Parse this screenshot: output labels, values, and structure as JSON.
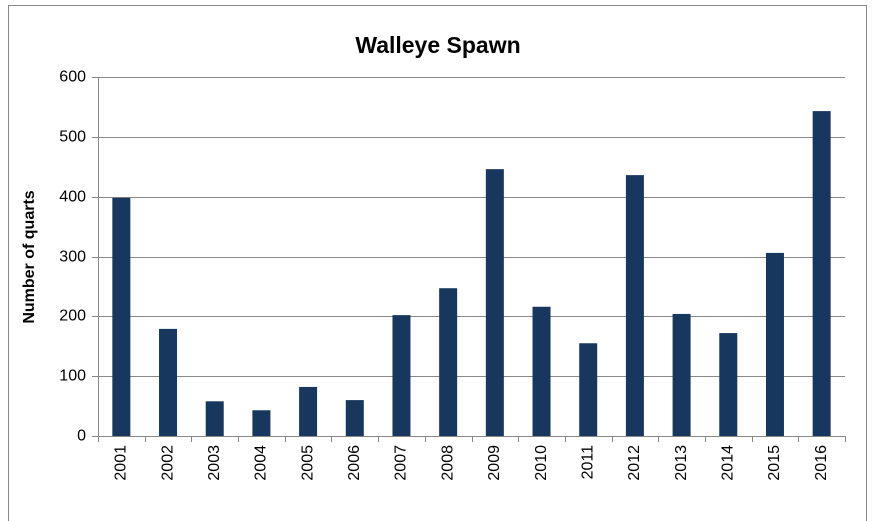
{
  "chart_data": {
    "type": "bar",
    "title": "Walleye Spawn",
    "y_label": "Number of quarts",
    "categories": [
      "2001",
      "2002",
      "2003",
      "2004",
      "2005",
      "2006",
      "2007",
      "2008",
      "2009",
      "2010",
      "2011",
      "2012",
      "2013",
      "2014",
      "2015",
      "2016"
    ],
    "values": [
      398,
      179,
      58,
      43,
      82,
      60,
      202,
      247,
      446,
      216,
      155,
      436,
      204,
      172,
      306,
      543
    ],
    "color": "#17375e",
    "ylim": [
      0,
      600
    ],
    "yticks": [
      0,
      100,
      200,
      300,
      400,
      500,
      600
    ],
    "grid": true
  }
}
